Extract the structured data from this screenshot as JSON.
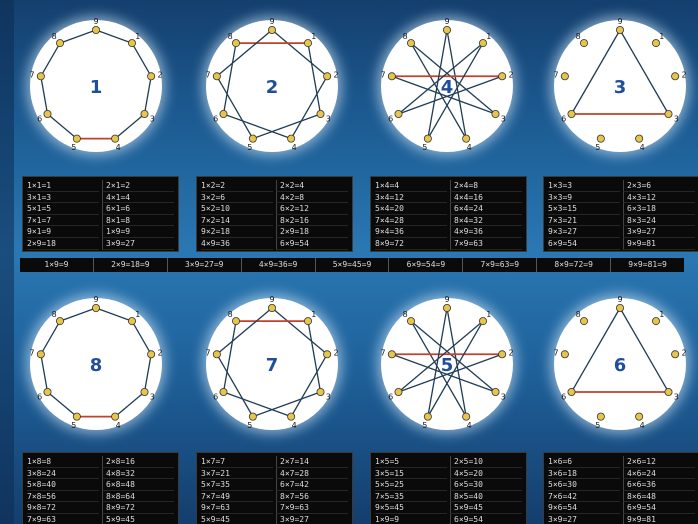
{
  "colors": {
    "chord": "#1f3d55",
    "highlight": "#c2412c",
    "node": "#e6c54a",
    "label": "#1f4f99",
    "disc": "#ffffff"
  },
  "diagrams": [
    {
      "number": "1",
      "chords": [
        [
          0,
          1
        ],
        [
          1,
          2
        ],
        [
          2,
          3
        ],
        [
          3,
          4
        ],
        [
          4,
          5
        ],
        [
          5,
          6
        ],
        [
          6,
          7
        ],
        [
          7,
          8
        ],
        [
          8,
          0
        ]
      ],
      "highlight": [
        4,
        5
      ],
      "labels": [
        "9",
        "1",
        "2",
        "3",
        "4",
        "5",
        "6",
        "7",
        "8"
      ]
    },
    {
      "number": "2",
      "chords": [
        [
          0,
          2
        ],
        [
          2,
          4
        ],
        [
          4,
          6
        ],
        [
          6,
          8
        ],
        [
          8,
          1
        ],
        [
          1,
          3
        ],
        [
          3,
          5
        ],
        [
          5,
          7
        ],
        [
          7,
          0
        ]
      ],
      "highlight": [
        8,
        1
      ],
      "labels": [
        "9",
        "1",
        "2",
        "3",
        "4",
        "5",
        "6",
        "7",
        "8"
      ]
    },
    {
      "number": "4",
      "chords": [
        [
          0,
          4
        ],
        [
          4,
          8
        ],
        [
          8,
          3
        ],
        [
          3,
          7
        ],
        [
          7,
          2
        ],
        [
          2,
          6
        ],
        [
          6,
          1
        ],
        [
          1,
          5
        ],
        [
          5,
          0
        ]
      ],
      "highlight": [
        7,
        2
      ],
      "labels": [
        "9",
        "1",
        "2",
        "3",
        "4",
        "5",
        "6",
        "7",
        "8"
      ]
    },
    {
      "number": "3",
      "chords": [
        [
          0,
          3
        ],
        [
          3,
          6
        ],
        [
          6,
          0
        ]
      ],
      "highlight": [
        3,
        6
      ],
      "labels": [
        "9",
        "1",
        "2",
        "3",
        "4",
        "5",
        "6",
        "7",
        "8"
      ]
    },
    {
      "number": "8",
      "chords": [
        [
          0,
          1
        ],
        [
          1,
          2
        ],
        [
          2,
          3
        ],
        [
          3,
          4
        ],
        [
          4,
          5
        ],
        [
          5,
          6
        ],
        [
          6,
          7
        ],
        [
          7,
          8
        ],
        [
          8,
          0
        ]
      ],
      "highlight": [
        4,
        5
      ],
      "labels": [
        "9",
        "1",
        "2",
        "3",
        "4",
        "5",
        "6",
        "7",
        "8"
      ]
    },
    {
      "number": "7",
      "chords": [
        [
          0,
          2
        ],
        [
          2,
          4
        ],
        [
          4,
          6
        ],
        [
          6,
          8
        ],
        [
          8,
          1
        ],
        [
          1,
          3
        ],
        [
          3,
          5
        ],
        [
          5,
          7
        ],
        [
          7,
          0
        ]
      ],
      "highlight": [
        8,
        1
      ],
      "labels": [
        "9",
        "1",
        "2",
        "3",
        "4",
        "5",
        "6",
        "7",
        "8"
      ]
    },
    {
      "number": "5",
      "chords": [
        [
          0,
          4
        ],
        [
          4,
          8
        ],
        [
          8,
          3
        ],
        [
          3,
          7
        ],
        [
          7,
          2
        ],
        [
          2,
          6
        ],
        [
          6,
          1
        ],
        [
          1,
          5
        ],
        [
          5,
          0
        ]
      ],
      "highlight": [
        7,
        2
      ],
      "labels": [
        "9",
        "1",
        "2",
        "3",
        "4",
        "5",
        "6",
        "7",
        "8"
      ]
    },
    {
      "number": "6",
      "chords": [
        [
          0,
          3
        ],
        [
          3,
          6
        ],
        [
          6,
          0
        ]
      ],
      "highlight": [
        3,
        6
      ],
      "labels": [
        "9",
        "1",
        "2",
        "3",
        "4",
        "5",
        "6",
        "7",
        "8"
      ]
    }
  ],
  "tables": [
    {
      "rows": [
        [
          "1×1=1",
          "2×1=2"
        ],
        [
          "3×1=3",
          "4×1=4"
        ],
        [
          "5×1=5",
          "6×1=6"
        ],
        [
          "7×1=7",
          "8×1=8"
        ],
        [
          "9×1=9",
          "1×9=9"
        ],
        [
          "2×9=18",
          "3×9=27"
        ]
      ]
    },
    {
      "rows": [
        [
          "1×2=2",
          "2×2=4"
        ],
        [
          "3×2=6",
          "4×2=8"
        ],
        [
          "5×2=10",
          "6×2=12"
        ],
        [
          "7×2=14",
          "8×2=16"
        ],
        [
          "9×2=18",
          "2×9=18"
        ],
        [
          "4×9=36",
          "6×9=54"
        ]
      ]
    },
    {
      "rows": [
        [
          "1×4=4",
          "2×4=8"
        ],
        [
          "3×4=12",
          "4×4=16"
        ],
        [
          "5×4=20",
          "6×4=24"
        ],
        [
          "7×4=28",
          "8×4=32"
        ],
        [
          "9×4=36",
          "4×9=36"
        ],
        [
          "8×9=72",
          "7×9=63"
        ]
      ]
    },
    {
      "rows": [
        [
          "1×3=3",
          "2×3=6"
        ],
        [
          "3×3=9",
          "4×3=12"
        ],
        [
          "5×3=15",
          "6×3=18"
        ],
        [
          "7×3=21",
          "8×3=24"
        ],
        [
          "9×3=27",
          "3×9=27"
        ],
        [
          "6×9=54",
          "9×9=81"
        ]
      ]
    },
    {
      "rows": [
        [
          "1×8=8",
          "2×8=16"
        ],
        [
          "3×8=24",
          "4×8=32"
        ],
        [
          "5×8=40",
          "6×8=48"
        ],
        [
          "7×8=56",
          "8×8=64"
        ],
        [
          "9×8=72",
          "8×9=72"
        ],
        [
          "7×9=63",
          "5×9=45"
        ]
      ]
    },
    {
      "rows": [
        [
          "1×7=7",
          "2×7=14"
        ],
        [
          "3×7=21",
          "4×7=28"
        ],
        [
          "5×7=35",
          "6×7=42"
        ],
        [
          "7×7=49",
          "8×7=56"
        ],
        [
          "9×7=63",
          "7×9=63"
        ],
        [
          "5×9=45",
          "3×9=27"
        ]
      ]
    },
    {
      "rows": [
        [
          "1×5=5",
          "2×5=10"
        ],
        [
          "3×5=15",
          "4×5=20"
        ],
        [
          "5×5=25",
          "6×5=30"
        ],
        [
          "7×5=35",
          "8×5=40"
        ],
        [
          "9×5=45",
          "5×9=45"
        ],
        [
          "1×9=9",
          "6×9=54"
        ]
      ]
    },
    {
      "rows": [
        [
          "1×6=6",
          "2×6=12"
        ],
        [
          "3×6=18",
          "4×6=24"
        ],
        [
          "5×6=30",
          "6×6=36"
        ],
        [
          "7×6=42",
          "8×6=48"
        ],
        [
          "9×6=54",
          "6×9=54"
        ],
        [
          "3×9=27",
          "9×9=81"
        ]
      ]
    }
  ],
  "strip": [
    "1×9=9",
    "2×9=18=9",
    "3×9=27=9",
    "4×9=36=9",
    "5×9=45=9",
    "6×9=54=9",
    "7×9=63=9",
    "8×9=72=9",
    "9×9=81=9"
  ]
}
